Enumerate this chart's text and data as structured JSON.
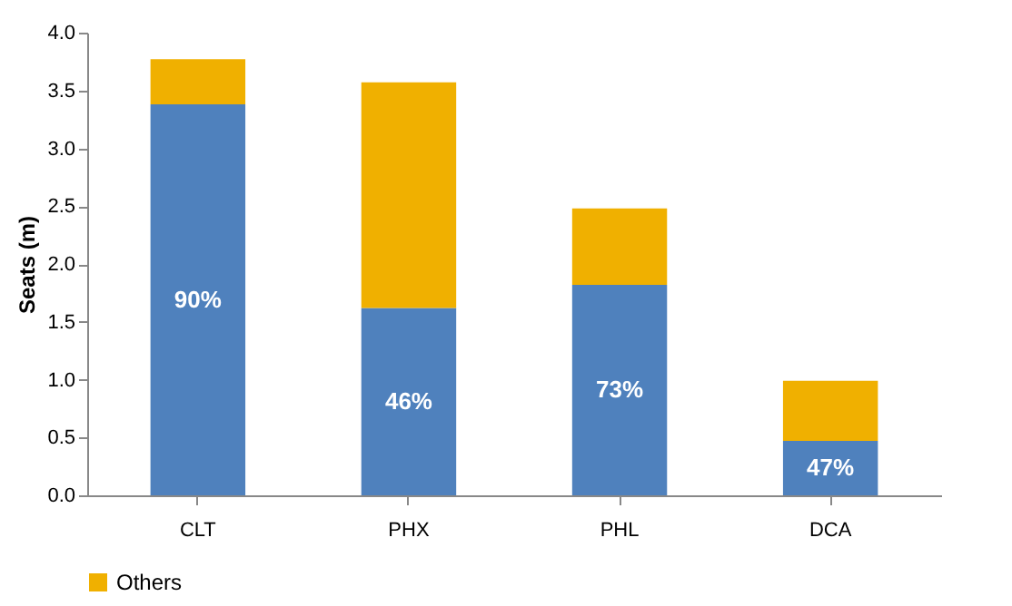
{
  "chart_data": {
    "type": "bar",
    "stacked": true,
    "ylabel": "Seats (m)",
    "categories": [
      "CLT",
      "PHX",
      "PHL",
      "DCA"
    ],
    "series": [
      {
        "color": "#4f81bd",
        "values": [
          3.38,
          1.62,
          1.82,
          0.47
        ]
      },
      {
        "name": "Others",
        "color": "#f0b000",
        "values": [
          0.39,
          1.95,
          0.66,
          0.52
        ]
      }
    ],
    "annotations": [
      "90%",
      "46%",
      "73%",
      "47%"
    ],
    "ylim": [
      0,
      4
    ],
    "yticks": [
      {
        "value": 0,
        "label": "0.0"
      },
      {
        "value": 0.5,
        "label": "0.5"
      },
      {
        "value": 1,
        "label": "1.0"
      },
      {
        "value": 1.5,
        "label": "1.5"
      },
      {
        "value": 2,
        "label": "2.0"
      },
      {
        "value": 2.5,
        "label": "2.5"
      },
      {
        "value": 3,
        "label": "3.0"
      },
      {
        "value": 3.5,
        "label": "3.5"
      },
      {
        "value": 4,
        "label": "4.0"
      }
    ],
    "legend": "bottom",
    "grid": false
  }
}
